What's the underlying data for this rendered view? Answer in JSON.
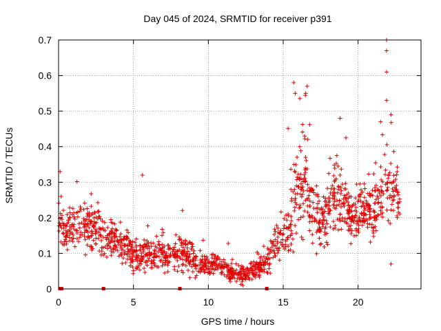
{
  "chart_data": {
    "type": "scatter",
    "title": "Day 045 of 2024, SRMTID for receiver p391",
    "xlabel": "GPS time / hours",
    "ylabel": "SRMTID / TECUs",
    "xlim": [
      0,
      24.2
    ],
    "ylim": [
      0,
      0.7
    ],
    "xticks": [
      0,
      5,
      10,
      15,
      20
    ],
    "xtick_labels": [
      "0",
      "5",
      "10",
      "15",
      "20"
    ],
    "yticks": [
      0,
      0.1,
      0.2,
      0.3,
      0.4,
      0.5,
      0.6,
      0.7
    ],
    "ytick_labels": [
      "0",
      "0.1",
      "0.2",
      "0.3",
      "0.4",
      "0.5",
      "0.6",
      "0.7"
    ],
    "grid": true,
    "marker": "+",
    "series_color": "#e00000",
    "data_gaps_x": [
      0.1,
      0.2,
      3.0,
      8.1,
      13.9
    ],
    "trend": {
      "hours": [
        0,
        0.5,
        1,
        1.5,
        2,
        2.5,
        3,
        3.5,
        4,
        4.5,
        5,
        5.5,
        6,
        6.5,
        7,
        7.5,
        8,
        8.5,
        9,
        9.5,
        10,
        10.5,
        11,
        11.5,
        12,
        12.5,
        13,
        13.5,
        14,
        14.5,
        15,
        15.5,
        16,
        16.5,
        17,
        17.5,
        18,
        18.5,
        19,
        19.5,
        20,
        20.5,
        21,
        21.5,
        22,
        22.5,
        22.8
      ],
      "median": [
        0.2,
        0.16,
        0.17,
        0.18,
        0.18,
        0.17,
        0.14,
        0.15,
        0.14,
        0.12,
        0.1,
        0.09,
        0.1,
        0.09,
        0.1,
        0.09,
        0.11,
        0.1,
        0.08,
        0.07,
        0.07,
        0.07,
        0.06,
        0.05,
        0.04,
        0.04,
        0.05,
        0.06,
        0.08,
        0.13,
        0.15,
        0.2,
        0.3,
        0.3,
        0.22,
        0.18,
        0.23,
        0.26,
        0.25,
        0.2,
        0.21,
        0.23,
        0.22,
        0.25,
        0.3,
        0.27,
        0.22
      ],
      "spread": [
        0.06,
        0.06,
        0.06,
        0.07,
        0.07,
        0.06,
        0.06,
        0.05,
        0.05,
        0.05,
        0.05,
        0.04,
        0.04,
        0.04,
        0.05,
        0.05,
        0.05,
        0.05,
        0.04,
        0.03,
        0.03,
        0.03,
        0.03,
        0.025,
        0.02,
        0.02,
        0.025,
        0.03,
        0.04,
        0.05,
        0.06,
        0.1,
        0.12,
        0.12,
        0.09,
        0.07,
        0.08,
        0.09,
        0.08,
        0.07,
        0.07,
        0.08,
        0.09,
        0.1,
        0.1,
        0.09,
        0.08
      ],
      "point_count": 1500
    },
    "outliers": [
      {
        "x": 21.9,
        "y": 0.7
      },
      {
        "x": 21.9,
        "y": 0.67
      },
      {
        "x": 21.9,
        "y": 0.61
      },
      {
        "x": 21.9,
        "y": 0.53
      },
      {
        "x": 21.5,
        "y": 0.47
      },
      {
        "x": 15.7,
        "y": 0.58
      },
      {
        "x": 16.6,
        "y": 0.57
      },
      {
        "x": 16.5,
        "y": 0.55
      },
      {
        "x": 15.8,
        "y": 0.55
      },
      {
        "x": 18.8,
        "y": 0.48
      },
      {
        "x": 22.2,
        "y": 0.49
      },
      {
        "x": 5.6,
        "y": 0.32
      },
      {
        "x": 0.1,
        "y": 0.33
      },
      {
        "x": 12.3,
        "y": 0.01
      },
      {
        "x": 22.2,
        "y": 0.07
      }
    ]
  }
}
